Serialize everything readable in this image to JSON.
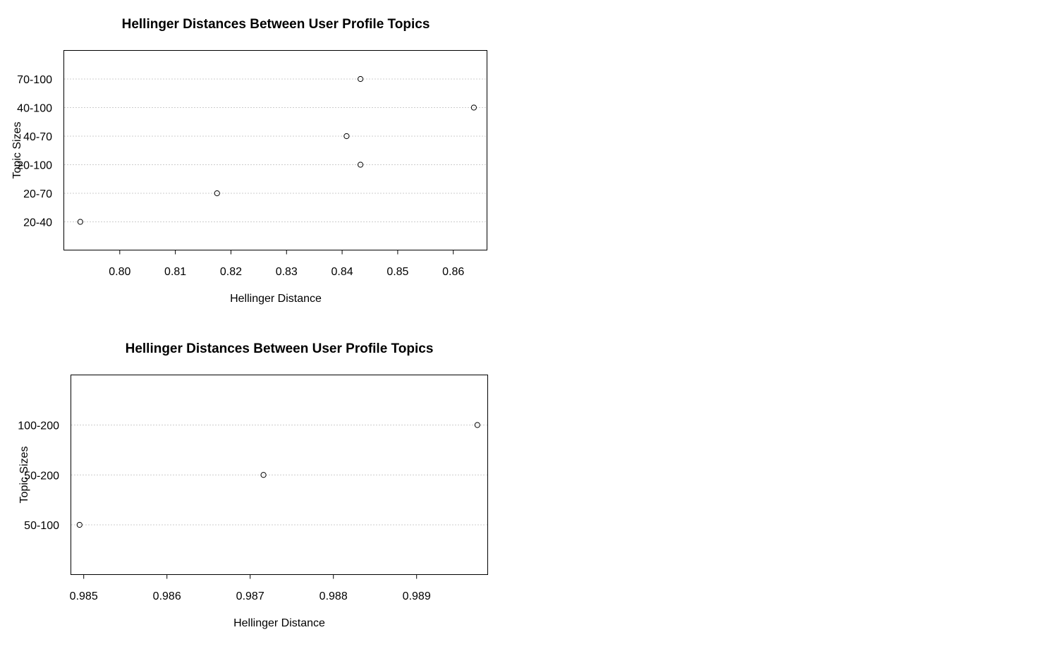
{
  "chart_data": [
    {
      "type": "scatter",
      "style": "dotchart",
      "title": "Hellinger Distances Between User Profile Topics",
      "xlabel": "Hellinger Distance",
      "ylabel": "Topic Sizes",
      "categories": [
        "20-40",
        "20-70",
        "20-100",
        "40-70",
        "40-100",
        "70-100"
      ],
      "values": [
        0.7929,
        0.8175,
        0.8433,
        0.8408,
        0.8637,
        0.8433
      ],
      "xticks": [
        "0.80",
        "0.81",
        "0.82",
        "0.83",
        "0.84",
        "0.85",
        "0.86"
      ],
      "xlim": [
        0.79,
        0.866
      ],
      "grid": true
    },
    {
      "type": "scatter",
      "style": "dotchart",
      "title": "Hellinger Distances Between User Profile Topics",
      "xlabel": "Hellinger Distance",
      "ylabel": "Topic Sizes",
      "categories": [
        "50-100",
        "50-200",
        "100-200"
      ],
      "values": [
        0.98495,
        0.98716,
        0.98973
      ],
      "xticks": [
        "0.985",
        "0.986",
        "0.987",
        "0.988",
        "0.989"
      ],
      "xlim": [
        0.98485,
        0.98985
      ],
      "grid": true
    }
  ]
}
